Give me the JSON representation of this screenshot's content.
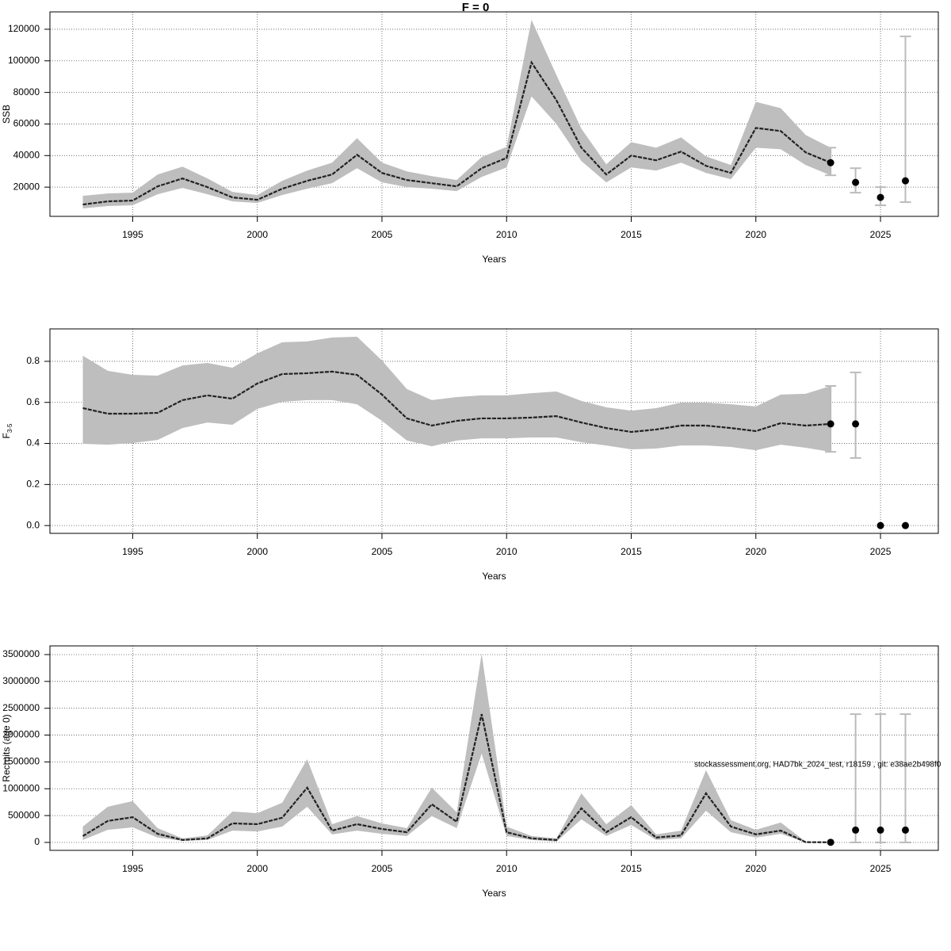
{
  "chart_data": [
    {
      "type": "line",
      "title": "F = 0",
      "xlabel": "Years",
      "ylabel": "SSB",
      "x": [
        1993,
        1994,
        1995,
        1996,
        1997,
        1998,
        1999,
        2000,
        2001,
        2002,
        2003,
        2004,
        2005,
        2006,
        2007,
        2008,
        2009,
        2010,
        2011,
        2012,
        2013,
        2014,
        2015,
        2016,
        2017,
        2018,
        2019,
        2020,
        2021,
        2022,
        2023
      ],
      "values": [
        9000,
        11000,
        11500,
        20500,
        25500,
        20000,
        13500,
        12000,
        19000,
        24000,
        28000,
        40500,
        29000,
        24500,
        22500,
        20500,
        32000,
        38500,
        99000,
        75000,
        45000,
        28000,
        40000,
        37000,
        42500,
        33500,
        29000,
        57500,
        55500,
        42000,
        35500
      ],
      "upper": [
        14500,
        16000,
        16500,
        28000,
        33000,
        25500,
        17000,
        15000,
        24000,
        30500,
        35500,
        51000,
        35500,
        30000,
        27000,
        24500,
        39000,
        45500,
        126000,
        91000,
        57000,
        34500,
        48500,
        45000,
        51500,
        39500,
        34000,
        74000,
        70000,
        53000,
        45000
      ],
      "lower": [
        6500,
        8000,
        8500,
        15500,
        19500,
        15500,
        11000,
        10000,
        15000,
        19000,
        22500,
        32000,
        23000,
        20000,
        19000,
        17500,
        26500,
        32500,
        77500,
        60000,
        36500,
        23000,
        32500,
        30500,
        35500,
        29000,
        25000,
        45000,
        44000,
        34000,
        27500
      ],
      "forecast": {
        "x": [
          2023,
          2024,
          2025,
          2026
        ],
        "values": [
          35500,
          23000,
          13500,
          24000
        ],
        "lower": [
          27500,
          16500,
          8500,
          10500
        ],
        "upper": [
          45000,
          32000,
          20000,
          115500
        ]
      },
      "xlim": [
        1991.68,
        2027.32
      ],
      "xticks": [
        1995,
        2000,
        2005,
        2010,
        2015,
        2020,
        2025
      ],
      "ylim": [
        1500,
        131000
      ],
      "yticks": [
        20000,
        40000,
        60000,
        80000,
        100000,
        120000
      ],
      "grid": true,
      "color": "#bebebe"
    },
    {
      "type": "line",
      "xlabel": "Years",
      "ylabel": "F",
      "ylabel_subscript": "3-5",
      "x": [
        1993,
        1994,
        1995,
        1996,
        1997,
        1998,
        1999,
        2000,
        2001,
        2002,
        2003,
        2004,
        2005,
        2006,
        2007,
        2008,
        2009,
        2010,
        2011,
        2012,
        2013,
        2014,
        2015,
        2016,
        2017,
        2018,
        2019,
        2020,
        2021,
        2022,
        2023
      ],
      "values": [
        0.572,
        0.545,
        0.545,
        0.549,
        0.611,
        0.634,
        0.618,
        0.692,
        0.738,
        0.742,
        0.75,
        0.734,
        0.638,
        0.522,
        0.487,
        0.51,
        0.522,
        0.522,
        0.526,
        0.533,
        0.502,
        0.475,
        0.456,
        0.468,
        0.487,
        0.487,
        0.475,
        0.46,
        0.499,
        0.487,
        0.495
      ],
      "upper": [
        0.827,
        0.754,
        0.734,
        0.73,
        0.78,
        0.792,
        0.769,
        0.839,
        0.893,
        0.897,
        0.916,
        0.92,
        0.804,
        0.665,
        0.611,
        0.626,
        0.634,
        0.634,
        0.645,
        0.653,
        0.607,
        0.576,
        0.56,
        0.572,
        0.599,
        0.599,
        0.591,
        0.58,
        0.638,
        0.642,
        0.68
      ],
      "lower": [
        0.398,
        0.394,
        0.402,
        0.417,
        0.475,
        0.502,
        0.491,
        0.568,
        0.603,
        0.611,
        0.611,
        0.591,
        0.51,
        0.414,
        0.386,
        0.414,
        0.425,
        0.425,
        0.429,
        0.429,
        0.406,
        0.39,
        0.371,
        0.375,
        0.39,
        0.39,
        0.383,
        0.367,
        0.394,
        0.379,
        0.359
      ],
      "forecast": {
        "x": [
          2023,
          2024,
          2025,
          2026
        ],
        "values": [
          0.495,
          0.495,
          0,
          0
        ],
        "lower": [
          0.359,
          0.329,
          null,
          null
        ],
        "upper": [
          0.68,
          0.746,
          null,
          null
        ]
      },
      "xlim": [
        1991.68,
        2027.32
      ],
      "xticks": [
        1995,
        2000,
        2005,
        2010,
        2015,
        2020,
        2025
      ],
      "ylim": [
        -0.038,
        0.958
      ],
      "yticks": [
        {
          "value": 0,
          "label": "0.0"
        },
        0.2,
        0.4,
        0.6,
        0.8
      ],
      "grid": true,
      "color": "#bebebe"
    },
    {
      "type": "line",
      "xlabel": "Years",
      "ylabel": "Recruits (age 0)",
      "annotation": "stockassessment.org, HAD7bk_2024_test, r18159 , git: e38ae2b498f0",
      "x": [
        1993,
        1994,
        1995,
        1996,
        1997,
        1998,
        1999,
        2000,
        2001,
        2002,
        2003,
        2004,
        2005,
        2006,
        2007,
        2008,
        2009,
        2010,
        2011,
        2012,
        2013,
        2014,
        2015,
        2016,
        2017,
        2018,
        2019,
        2020,
        2021,
        2022,
        2023
      ],
      "values": [
        118000,
        400000,
        470000,
        160000,
        45000,
        75000,
        355000,
        340000,
        460000,
        1020000,
        220000,
        340000,
        250000,
        190000,
        710000,
        385000,
        2390000,
        190000,
        75000,
        45000,
        635000,
        190000,
        470000,
        90000,
        130000,
        915000,
        295000,
        150000,
        220000,
        5000,
        2000
      ],
      "upper": [
        295000,
        665000,
        770000,
        265000,
        75000,
        130000,
        575000,
        545000,
        740000,
        1550000,
        340000,
        490000,
        355000,
        265000,
        1020000,
        560000,
        3515000,
        295000,
        120000,
        75000,
        915000,
        340000,
        695000,
        150000,
        220000,
        1345000,
        415000,
        235000,
        370000,
        15000,
        5000
      ],
      "lower": [
        45000,
        235000,
        280000,
        90000,
        30000,
        45000,
        220000,
        205000,
        295000,
        665000,
        150000,
        220000,
        160000,
        120000,
        490000,
        265000,
        1655000,
        120000,
        45000,
        15000,
        430000,
        120000,
        325000,
        45000,
        75000,
        590000,
        190000,
        90000,
        160000,
        0,
        0
      ],
      "forecast": {
        "x": [
          2023,
          2024,
          2025,
          2026
        ],
        "values": [
          2000,
          230000,
          230000,
          230000
        ],
        "lower": [
          null,
          0,
          0,
          0
        ],
        "upper": [
          null,
          2390000,
          2390000,
          2390000
        ]
      },
      "xlim": [
        1991.68,
        2027.32
      ],
      "xticks": [
        1995,
        2000,
        2005,
        2010,
        2015,
        2020,
        2025
      ],
      "ylim": [
        -148000,
        3662000
      ],
      "yticks": [
        0,
        500000,
        1000000,
        1500000,
        2000000,
        2500000,
        3000000,
        3500000
      ],
      "grid": true,
      "color": "#bebebe"
    }
  ]
}
